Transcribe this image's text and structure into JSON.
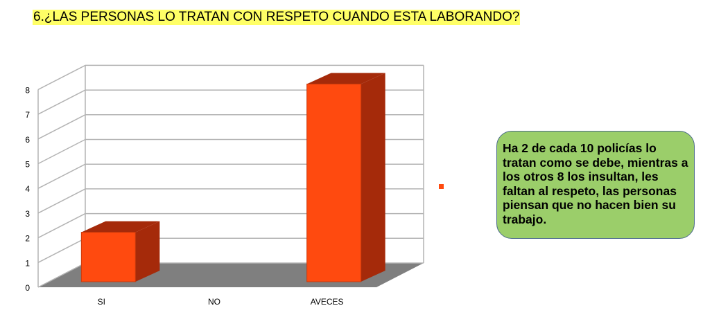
{
  "title": "6.¿LAS PERSONAS LO TRATAN CON RESPETO CUANDO ESTA LABORANDO?",
  "note": "Ha 2 de cada 10 policías lo tratan como se debe, mientras a los otros 8 los insultan, les faltan al respeto, las personas piensan que no hacen bien su trabajo.",
  "colors": {
    "bar_front": "#ff4a0f",
    "bar_side": "#a52a0a",
    "floor": "#7f7f7f",
    "note_bg": "#9bce6a",
    "title_bg": "#ffff66"
  },
  "chart_data": {
    "type": "bar",
    "title": "6.¿LAS PERSONAS LO TRATAN CON RESPETO CUANDO ESTA LABORANDO?",
    "categories": [
      "SI",
      "NO",
      "AVECES"
    ],
    "values": [
      2,
      0,
      8
    ],
    "xlabel": "",
    "ylabel": "",
    "ylim": [
      0,
      8
    ],
    "yticks": [
      0,
      1,
      2,
      3,
      4,
      5,
      6,
      7,
      8
    ],
    "grid": true,
    "legend": {
      "position": "right",
      "entries": [
        ""
      ]
    },
    "style": "3d"
  }
}
